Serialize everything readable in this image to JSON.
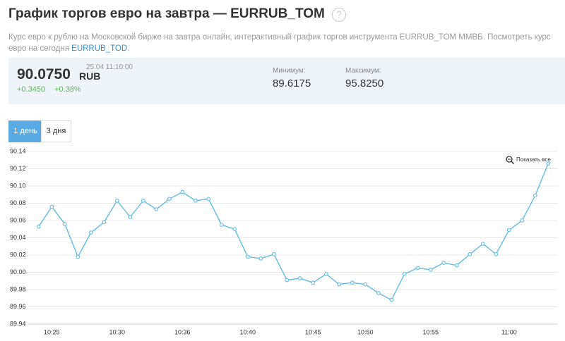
{
  "header": {
    "title": "График торгов евро на завтра — EURRUB_TOM",
    "help": "?",
    "description": "Курс евро к рублю на Московской бирже на завтра онлайн, интерактивный график торгов инструмента EURRUB_TOM ММВБ. Посмотреть курс евро на сегодня ",
    "link": "EURRUB_TOD",
    "description_end": "."
  },
  "quote": {
    "price": "90.0750",
    "currency": "RUB",
    "time": "25.04 11:10:00",
    "change": "+0.3450",
    "change_pct": "+0.38%",
    "min_label": "Минимум:",
    "min": "89.6175",
    "max_label": "Максимум:",
    "max": "95.8250"
  },
  "tabs": [
    "1 день",
    "3 дня"
  ],
  "zoom_button": "Показать все",
  "chart_data": {
    "type": "line",
    "categories": [
      null,
      "10:25",
      null,
      null,
      null,
      null,
      "10:30",
      null,
      null,
      null,
      null,
      "10:36",
      null,
      null,
      null,
      null,
      "10:40",
      null,
      null,
      null,
      null,
      "10:45",
      null,
      null,
      null,
      "10:50",
      null,
      null,
      null,
      null,
      "10:55",
      null,
      null,
      null,
      null,
      null,
      "11:00",
      null,
      null,
      null
    ],
    "series": [
      {
        "color": "#6cbfe2",
        "values": [
          90.053,
          90.076,
          90.056,
          90.018,
          90.046,
          90.058,
          90.083,
          90.064,
          90.083,
          90.073,
          90.085,
          90.093,
          90.083,
          90.085,
          90.055,
          90.05,
          90.018,
          90.016,
          90.021,
          89.991,
          89.993,
          89.988,
          89.998,
          89.986,
          89.988,
          89.986,
          89.976,
          89.968,
          89.998,
          90.005,
          90.003,
          90.011,
          90.008,
          90.021,
          90.033,
          90.021,
          90.049,
          90.06,
          90.089,
          90.126
        ]
      }
    ],
    "ylim": [
      89.94,
      90.14
    ],
    "yticks": [
      89.94,
      89.96,
      89.98,
      {
        "value": 90,
        "label": "90.00"
      },
      90.02,
      90.04,
      90.06,
      90.08,
      {
        "value": 90.1,
        "label": "90.10"
      },
      90.12,
      90.14
    ],
    "grid": true
  }
}
